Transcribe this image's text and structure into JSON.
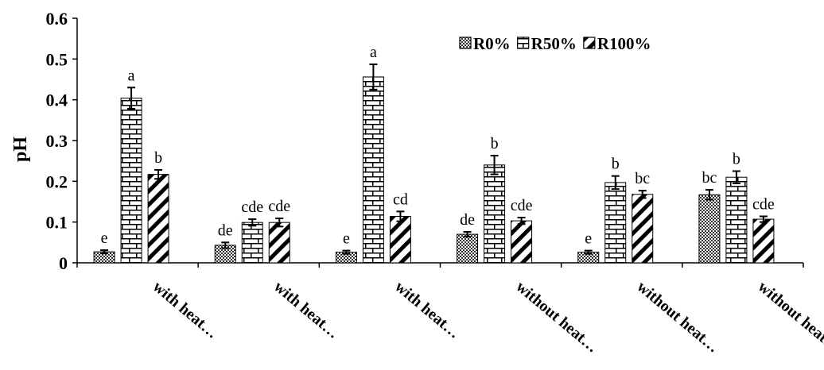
{
  "chart_data": {
    "type": "bar",
    "ylabel": "pH",
    "ylim": [
      0,
      0.6
    ],
    "yticks": [
      "0",
      "0.1",
      "0.2",
      "0.3",
      "0.4",
      "0.5",
      "0.6"
    ],
    "grid": false,
    "legend_position": "top-right",
    "categories": [
      "with heat…",
      "with heat…",
      "with heat…",
      "without heat…",
      "without heat…",
      "without heat…"
    ],
    "series": [
      {
        "name": "R0%",
        "pattern": "crosshatch",
        "values": [
          0.027,
          0.043,
          0.026,
          0.07,
          0.026,
          0.167
        ],
        "errors": [
          0.004,
          0.007,
          0.004,
          0.006,
          0.004,
          0.012
        ],
        "letters": [
          "e",
          "de",
          "e",
          "de",
          "e",
          "bc"
        ]
      },
      {
        "name": "R50%",
        "pattern": "brick",
        "values": [
          0.404,
          0.099,
          0.456,
          0.24,
          0.197,
          0.21
        ],
        "errors": [
          0.026,
          0.008,
          0.031,
          0.023,
          0.016,
          0.015
        ],
        "letters": [
          "a",
          "cde",
          "a",
          "b",
          "b",
          "b"
        ]
      },
      {
        "name": "R100%",
        "pattern": "diagonal",
        "values": [
          0.217,
          0.099,
          0.114,
          0.103,
          0.168,
          0.107
        ],
        "errors": [
          0.011,
          0.01,
          0.012,
          0.008,
          0.009,
          0.007
        ],
        "letters": [
          "b",
          "cde",
          "cd",
          "cde",
          "bc",
          "cde"
        ]
      }
    ]
  }
}
